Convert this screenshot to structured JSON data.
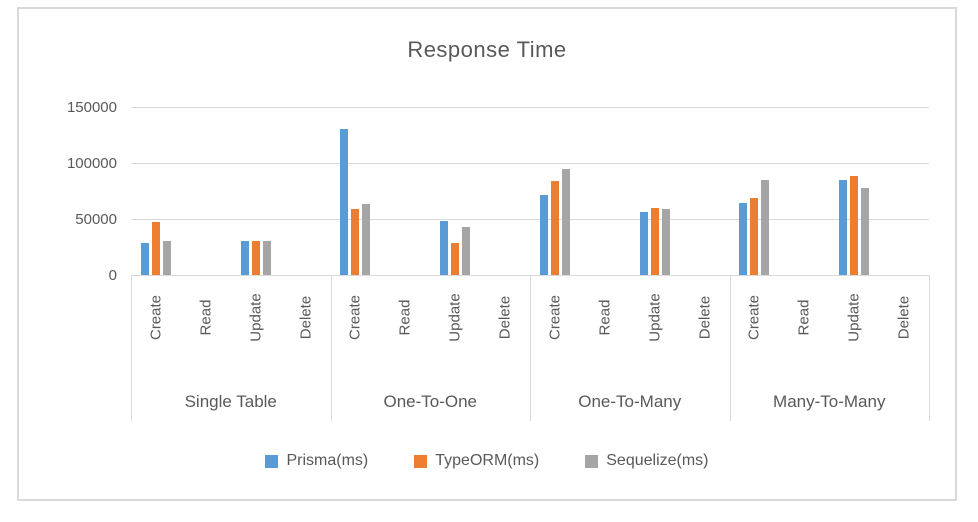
{
  "chart": {
    "title": "Response Time",
    "text_color": "#595959",
    "grid_color": "#d9d9d9",
    "border_color": "#d9d9d9",
    "background": "#ffffff"
  },
  "chart_data": {
    "type": "bar",
    "title": "Response Time",
    "groups": [
      "Single Table",
      "One-To-One",
      "One-To-Many",
      "Many-To-Many"
    ],
    "operations": [
      "Create",
      "Read",
      "Update",
      "Delete"
    ],
    "ylim": [
      0,
      150000
    ],
    "yticks": [
      0,
      50000,
      100000,
      150000
    ],
    "ytick_labels": [
      "0",
      "50000",
      "100000",
      "150000"
    ],
    "grid": true,
    "legend_position": "bottom",
    "series": [
      {
        "name": "Prisma(ms)",
        "color": "#5b9bd5",
        "values": [
          29000,
          0,
          30000,
          0,
          130000,
          0,
          48000,
          0,
          71000,
          0,
          56000,
          0,
          64000,
          0,
          85000,
          0
        ]
      },
      {
        "name": "TypeORM(ms)",
        "color": "#ed7d31",
        "values": [
          47000,
          0,
          30000,
          0,
          59000,
          0,
          29000,
          0,
          84000,
          0,
          60000,
          0,
          69000,
          0,
          88000,
          0
        ]
      },
      {
        "name": "Sequelize(ms)",
        "color": "#a5a5a5",
        "values": [
          30000,
          0,
          30000,
          0,
          63000,
          0,
          43000,
          0,
          95000,
          0,
          59000,
          0,
          85000,
          0,
          78000,
          0
        ]
      }
    ]
  }
}
